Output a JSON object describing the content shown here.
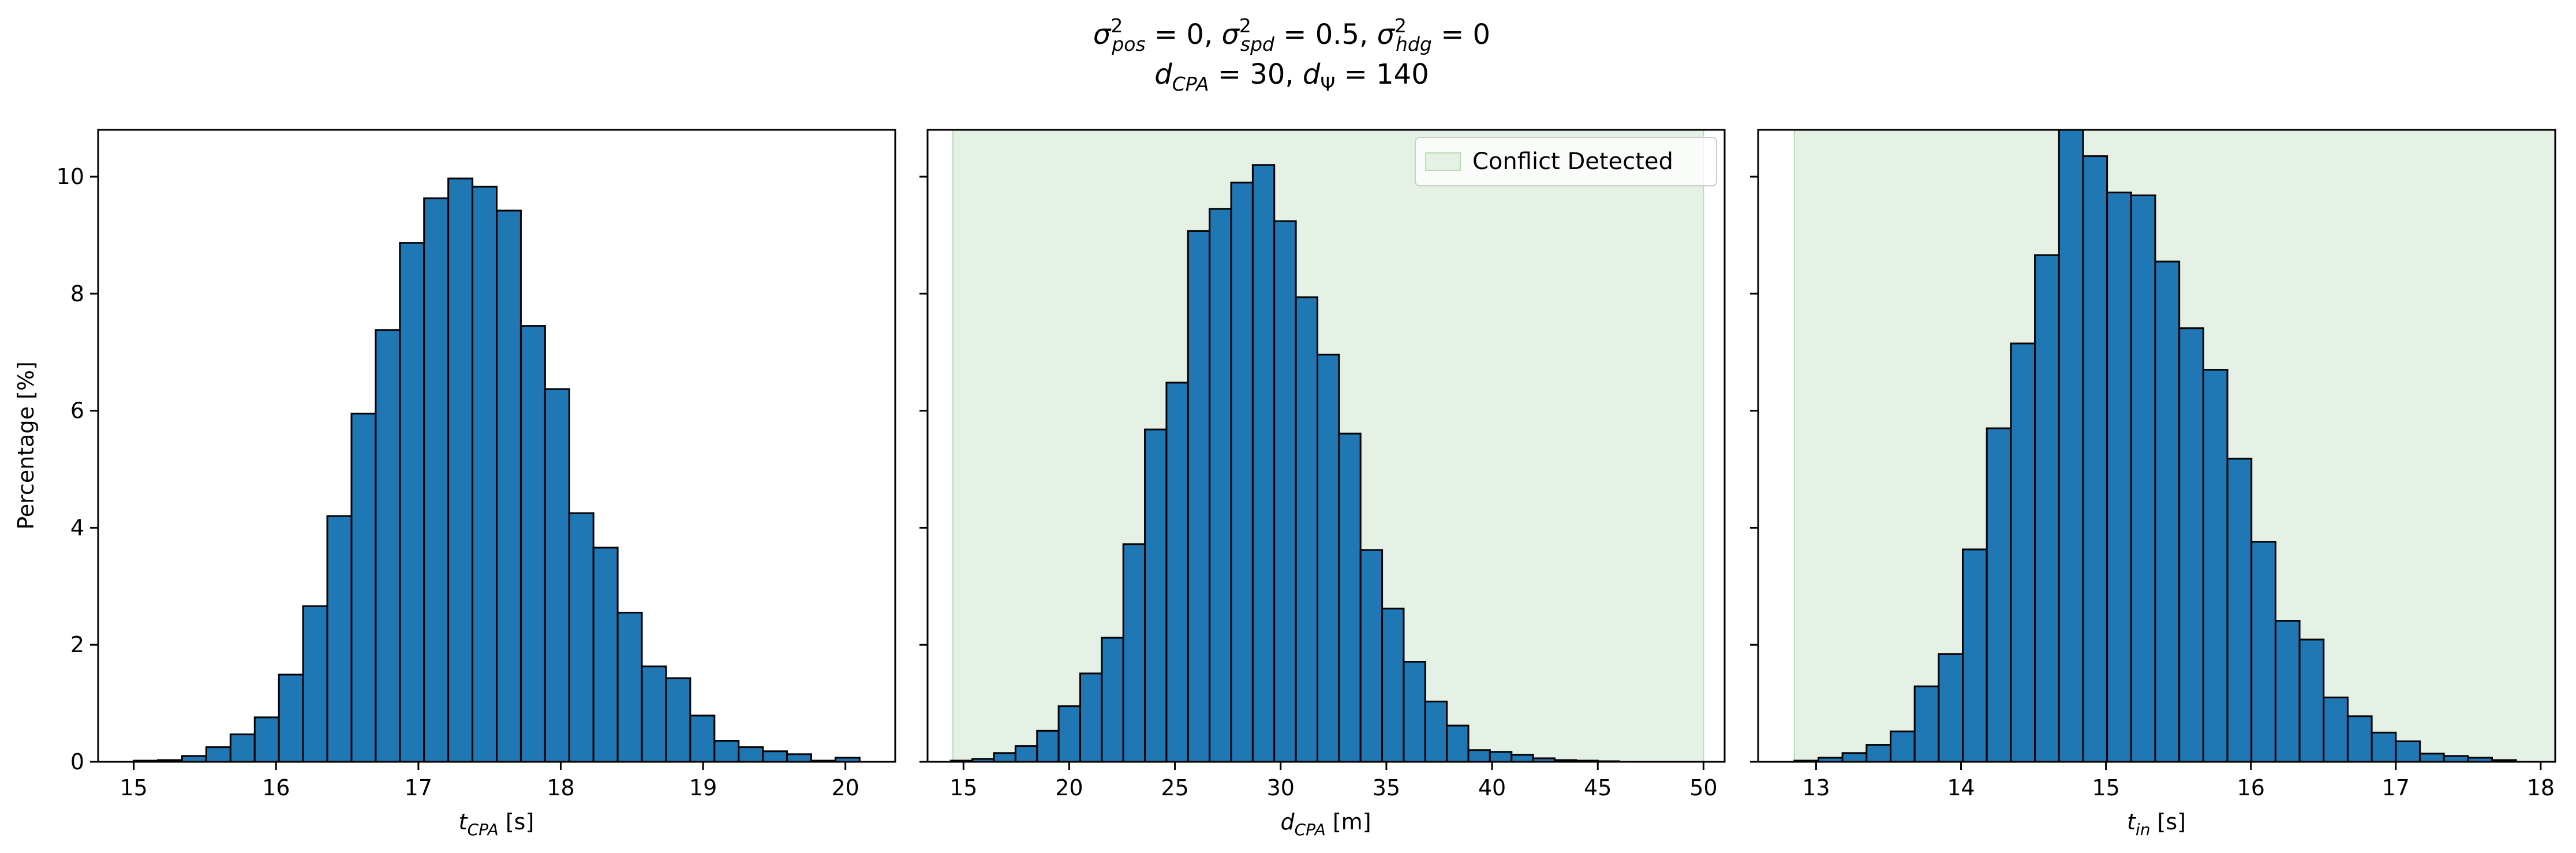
{
  "figure": {
    "title_line1": "σ²pos = 0, σ²spd = 0.5, σ²hdg = 0",
    "title_line2": "dCPA = 30, dΨ = 140"
  },
  "colors": {
    "bar_fill": "#1f77b4",
    "bar_edge": "#000000",
    "region_fill": "#e4f1e4",
    "region_edge": "#b9dcb9"
  },
  "chart_data": [
    {
      "type": "bar",
      "xlabel": "tCPA [s]",
      "ylabel": "Percentage [%]",
      "xlim": [
        14.75,
        20.35
      ],
      "ylim": [
        0,
        10.8
      ],
      "xticks": [
        15,
        16,
        17,
        18,
        19,
        20
      ],
      "yticks": [
        0,
        2,
        4,
        6,
        8,
        10
      ],
      "x_start": 15.0,
      "bin_width": 0.17,
      "values": [
        0.02,
        0.03,
        0.1,
        0.25,
        0.47,
        0.76,
        1.49,
        2.66,
        4.2,
        5.95,
        7.38,
        8.87,
        9.63,
        9.97,
        9.83,
        9.42,
        7.45,
        6.37,
        4.25,
        3.66,
        2.55,
        1.63,
        1.43,
        0.79,
        0.36,
        0.25,
        0.18,
        0.13,
        0.02,
        0.07
      ]
    },
    {
      "type": "bar",
      "xlabel": "dCPA [m]",
      "ylabel": "",
      "xlim": [
        13.3,
        51.0
      ],
      "ylim": [
        0,
        10.8
      ],
      "xticks": [
        15,
        20,
        25,
        30,
        35,
        40,
        45,
        50
      ],
      "yticks": [
        0,
        2,
        4,
        6,
        8,
        10
      ],
      "x_start": 14.4,
      "bin_width": 1.02,
      "values": [
        0.02,
        0.05,
        0.15,
        0.27,
        0.53,
        0.95,
        1.51,
        2.12,
        3.72,
        5.68,
        6.48,
        9.07,
        9.45,
        9.9,
        10.2,
        9.24,
        7.94,
        6.96,
        5.61,
        3.62,
        2.62,
        1.71,
        1.03,
        0.62,
        0.2,
        0.17,
        0.12,
        0.06,
        0.03,
        0.02,
        0.01
      ],
      "region": {
        "label": "Conflict Detected",
        "x_from": 14.5,
        "x_to": 50.0
      },
      "legend": {
        "label": "Conflict Detected",
        "position": "upper right"
      }
    },
    {
      "type": "bar",
      "xlabel": "tin [s]",
      "ylabel": "",
      "xlim": [
        12.6,
        18.1
      ],
      "ylim": [
        0,
        10.8
      ],
      "xticks": [
        13,
        14,
        15,
        16,
        17,
        18
      ],
      "yticks": [
        0,
        2,
        4,
        6,
        8,
        10
      ],
      "x_start": 12.85,
      "bin_width": 0.166,
      "values": [
        0.02,
        0.07,
        0.15,
        0.29,
        0.52,
        1.29,
        1.84,
        3.63,
        5.7,
        7.15,
        8.66,
        10.9,
        10.35,
        9.73,
        9.68,
        8.55,
        7.41,
        6.7,
        5.18,
        3.76,
        2.41,
        2.09,
        1.1,
        0.78,
        0.5,
        0.35,
        0.14,
        0.1,
        0.07,
        0.03
      ],
      "region": {
        "label": "Conflict Detected",
        "x_from": 12.85,
        "x_to": 18.1
      }
    }
  ]
}
